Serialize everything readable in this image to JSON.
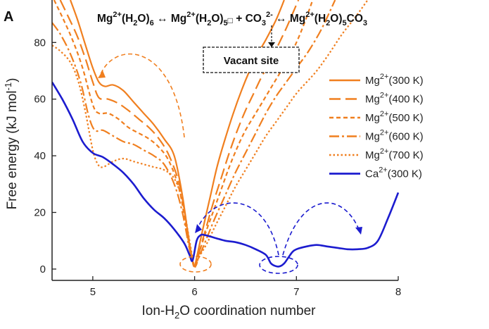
{
  "panel_label": "A",
  "reaction": {
    "prefix": "Mg",
    "prefix_sup": "2+",
    "part1": "(H",
    "part1_sub": "2",
    "part1b": "O)",
    "part1_sub2": "6",
    "arrow1": " ↔ ",
    "part2": "Mg",
    "part2_sup": "2+",
    "part2b": "(H",
    "part2_sub": "2",
    "part2c": "O)",
    "part2_sub2": "5",
    "vacancy_glyph": "□",
    "plus": " + CO",
    "plus_sub": "3",
    "plus_sup": "2-",
    "arrow2": " ↔ ",
    "part3": "Mg",
    "part3_sup": "2+",
    "part3b": "(H",
    "part3_sub": "2",
    "part3c": "O)",
    "part3_sub2": "5",
    "part3d": "CO",
    "part3_sub3": "3"
  },
  "vacant_site_label": "Vacant site",
  "colors": {
    "mg": "#f07f1f",
    "ca": "#1c1ccf",
    "axis": "#222222"
  },
  "chart_data": {
    "type": "line",
    "xlabel": {
      "a": "Ion-H",
      "sub": "2",
      "b": "O coordination number"
    },
    "ylabel": {
      "a": "Free energy (kJ mol",
      "sup": "-1",
      "b": ")"
    },
    "xlim": [
      4.6,
      8.0
    ],
    "ylim": [
      -4,
      95
    ],
    "xticks": [
      5,
      6,
      7,
      8
    ],
    "yticks": [
      0,
      20,
      40,
      60,
      80
    ],
    "series": [
      {
        "name": "Mg2+(300 K)",
        "label": "Mg",
        "sup": "2+",
        "suffix": "(300 K)",
        "color": "#f07f1f",
        "dash": "solid",
        "x": [
          4.78,
          4.85,
          4.92,
          5.0,
          5.06,
          5.12,
          5.2,
          5.3,
          5.4,
          5.5,
          5.6,
          5.7,
          5.8,
          5.88,
          5.94,
          5.98,
          6.0,
          6.02,
          6.08,
          6.15,
          6.22,
          6.3,
          6.38,
          6.46,
          6.54,
          6.62,
          6.7,
          6.8,
          6.88
        ],
        "y": [
          95,
          88,
          80,
          71,
          66,
          64.5,
          65,
          63,
          59,
          55,
          51,
          46,
          40,
          26,
          11,
          2.5,
          1,
          4,
          14,
          25,
          36,
          46,
          55,
          63,
          70,
          76,
          81,
          88,
          95
        ]
      },
      {
        "name": "Mg2+(400 K)",
        "label": "Mg",
        "sup": "2+",
        "suffix": "(400 K)",
        "color": "#f07f1f",
        "dash": "16,7",
        "x": [
          4.68,
          4.76,
          4.85,
          4.93,
          5.0,
          5.06,
          5.15,
          5.25,
          5.35,
          5.45,
          5.55,
          5.65,
          5.75,
          5.85,
          5.92,
          5.97,
          6.0,
          6.03,
          6.1,
          6.18,
          6.26,
          6.34,
          6.42,
          6.5,
          6.58,
          6.66,
          6.74,
          6.82,
          6.9,
          6.96,
          7.02
        ],
        "y": [
          95,
          89,
          82,
          74,
          66,
          60.5,
          60,
          58.5,
          56,
          53,
          50,
          46,
          40,
          30,
          16,
          5,
          1,
          4,
          13,
          23,
          32,
          41,
          49,
          56,
          62,
          68,
          73,
          79,
          85,
          90,
          95
        ]
      },
      {
        "name": "Mg2+(500 K)",
        "label": "Mg",
        "sup": "2+",
        "suffix": "(500 K)",
        "color": "#f07f1f",
        "dash": "6,4",
        "x": [
          4.62,
          4.7,
          4.8,
          4.9,
          5.0,
          5.06,
          5.15,
          5.25,
          5.35,
          5.45,
          5.55,
          5.65,
          5.75,
          5.85,
          5.92,
          5.97,
          6.0,
          6.03,
          6.1,
          6.18,
          6.26,
          6.34,
          6.42,
          6.5,
          6.6,
          6.7,
          6.8,
          6.9,
          7.0,
          7.08,
          7.16
        ],
        "y": [
          95,
          89,
          81,
          71,
          58,
          55,
          55,
          53,
          50,
          48,
          46,
          43,
          38,
          28,
          14,
          4,
          1,
          4,
          12,
          20,
          28,
          36,
          43,
          49,
          55,
          61,
          67,
          73,
          80,
          87,
          95
        ]
      },
      {
        "name": "Mg2+(600 K)",
        "label": "Mg",
        "sup": "2+",
        "suffix": "(600 K)",
        "color": "#f07f1f",
        "dash": "14,4,3,4",
        "x": [
          4.6,
          4.68,
          4.78,
          4.88,
          4.96,
          5.02,
          5.1,
          5.2,
          5.3,
          5.4,
          5.5,
          5.6,
          5.7,
          5.8,
          5.88,
          5.95,
          6.0,
          6.04,
          6.12,
          6.2,
          6.3,
          6.4,
          6.5,
          6.6,
          6.7,
          6.8,
          6.9,
          7.0,
          7.12,
          7.25,
          7.38
        ],
        "y": [
          87,
          83,
          76,
          66,
          54,
          49,
          49,
          47,
          45,
          44,
          42,
          40,
          37,
          30,
          20,
          7,
          1,
          4,
          11,
          18,
          26,
          34,
          41,
          48,
          55,
          61,
          66,
          71,
          77,
          85,
          95
        ]
      },
      {
        "name": "Mg2+(700 K)",
        "label": "Mg",
        "sup": "2+",
        "suffix": "(700 K)",
        "color": "#f07f1f",
        "dash": "2.5,3",
        "x": [
          4.6,
          4.68,
          4.78,
          4.86,
          4.93,
          5.0,
          5.05,
          5.1,
          5.2,
          5.3,
          5.4,
          5.5,
          5.6,
          5.7,
          5.8,
          5.88,
          5.95,
          6.0,
          6.04,
          6.12,
          6.2,
          6.3,
          6.4,
          6.5,
          6.6,
          6.7,
          6.8,
          6.9,
          7.0,
          7.1,
          7.2,
          7.32,
          7.45,
          7.58,
          7.7
        ],
        "y": [
          79,
          77,
          73,
          66,
          55,
          42,
          37,
          36,
          38,
          39,
          38,
          37,
          36,
          35,
          32,
          24,
          10,
          1,
          4,
          9,
          15,
          22,
          29,
          35,
          41,
          47,
          52,
          57,
          62,
          66,
          70,
          76,
          83,
          89,
          95
        ]
      },
      {
        "name": "Ca2+(300 K)",
        "label": "Ca",
        "sup": "2+",
        "suffix": "(300 K)",
        "color": "#1c1ccf",
        "dash": "solid",
        "x": [
          4.6,
          4.7,
          4.8,
          4.9,
          5.0,
          5.1,
          5.2,
          5.3,
          5.4,
          5.5,
          5.6,
          5.7,
          5.8,
          5.9,
          5.95,
          5.98,
          6.02,
          6.06,
          6.1,
          6.2,
          6.3,
          6.4,
          6.5,
          6.6,
          6.7,
          6.75,
          6.8,
          6.84,
          6.88,
          6.92,
          6.96,
          7.0,
          7.1,
          7.2,
          7.3,
          7.4,
          7.5,
          7.6,
          7.7,
          7.8,
          7.9,
          8.0
        ],
        "y": [
          66,
          60,
          53,
          45,
          41,
          39.5,
          37,
          34,
          30,
          25,
          21,
          18,
          14,
          9,
          5,
          3,
          10,
          12,
          12,
          11,
          10,
          9.5,
          8.5,
          7,
          5,
          2,
          1,
          1,
          2,
          4,
          6,
          7,
          8,
          8.5,
          8,
          7.5,
          7,
          7,
          7.5,
          10,
          18,
          27
        ]
      }
    ]
  }
}
